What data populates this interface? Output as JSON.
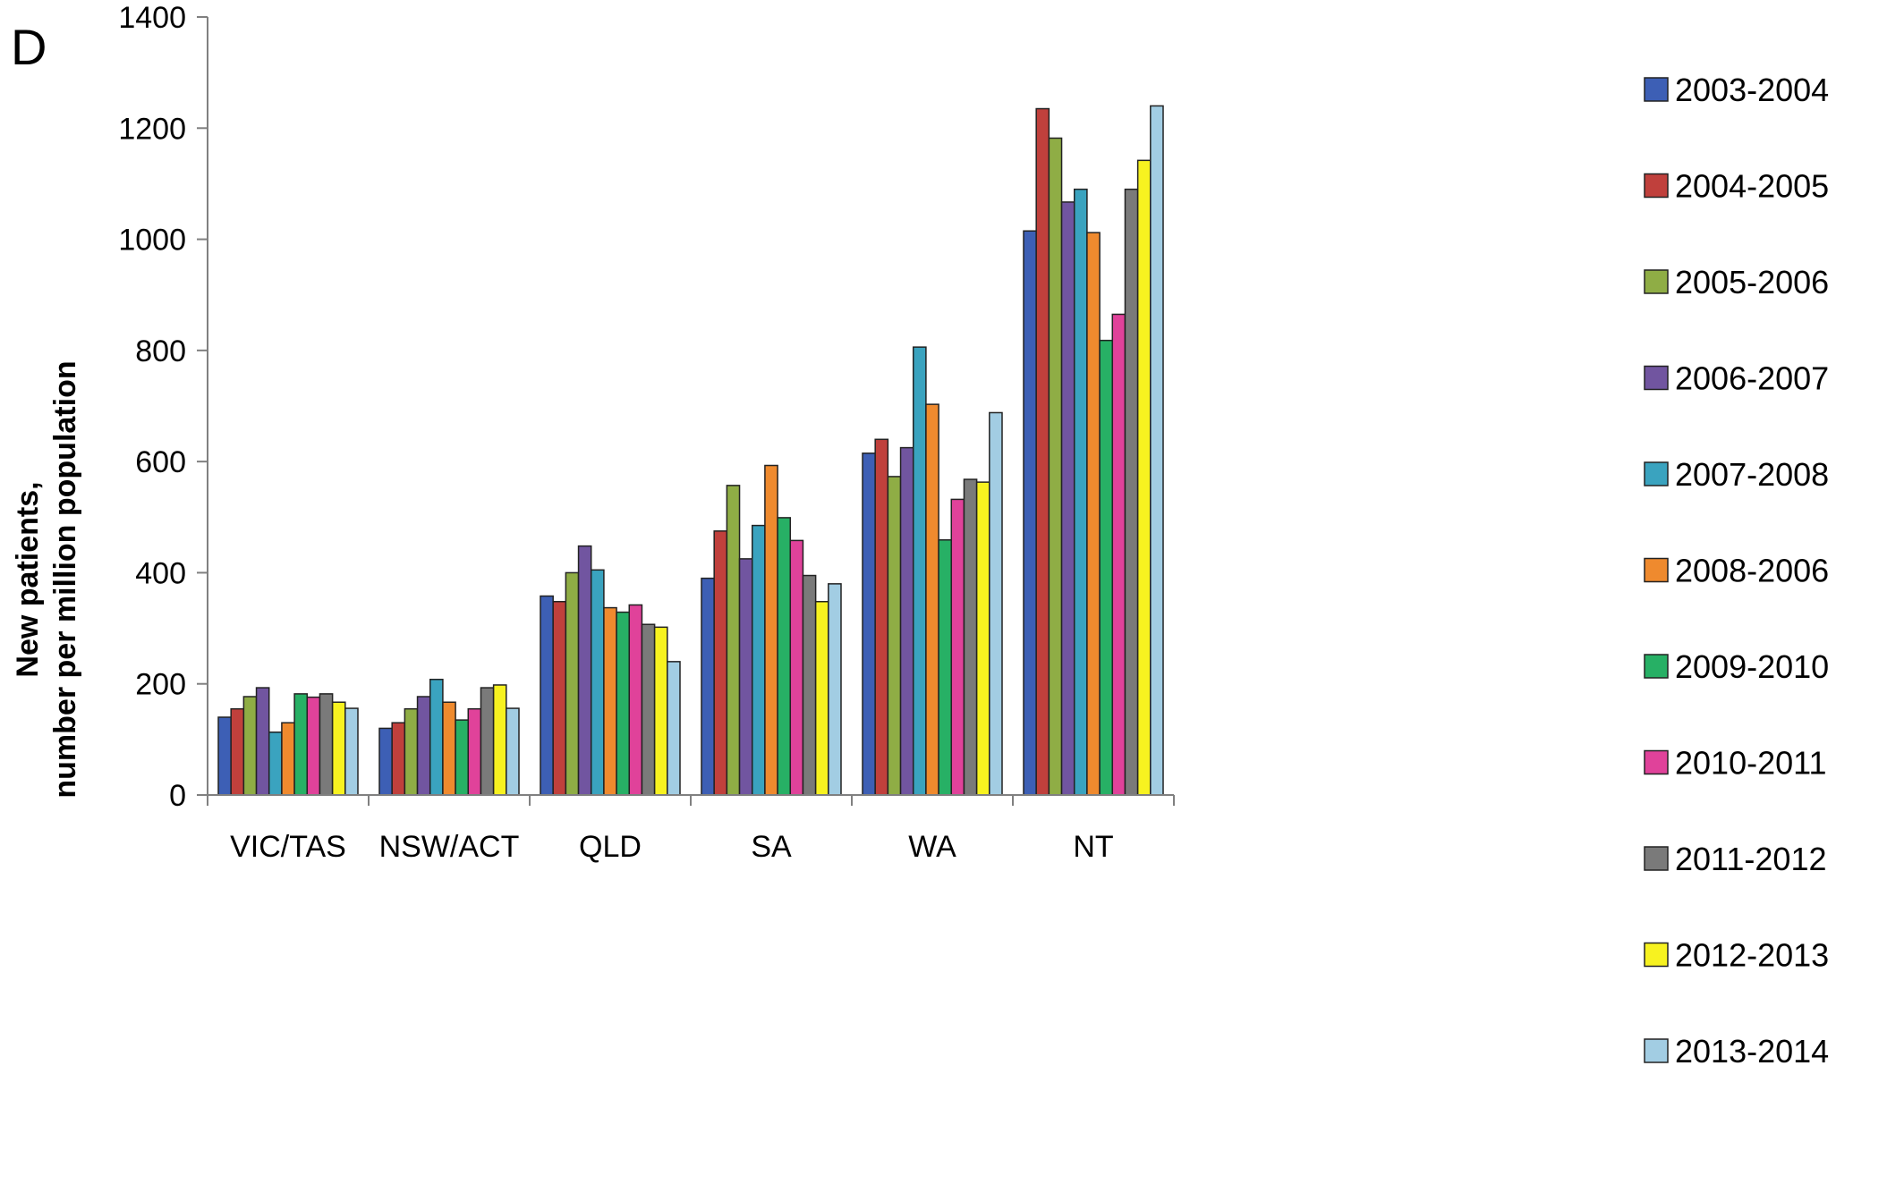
{
  "panel_label": "D",
  "colors": [
    "#3d5fb5",
    "#c0403c",
    "#8fad45",
    "#7155a0",
    "#3aa3bf",
    "#ef8a2e",
    "#27b065",
    "#e0429a",
    "#7a7a7a",
    "#f7f220",
    "#a2cde3"
  ],
  "chart_data": {
    "type": "bar",
    "title": "",
    "xlabel": "",
    "ylabel_lines": [
      "New patients,",
      "number per million population"
    ],
    "ylim": [
      0,
      1400
    ],
    "yticks": [
      0,
      200,
      400,
      600,
      800,
      1000,
      1200,
      1400
    ],
    "grid": false,
    "legend_position": "right",
    "categories": [
      "VIC/TAS",
      "NSW/ACT",
      "QLD",
      "SA",
      "WA",
      "NT"
    ],
    "series": [
      {
        "name": "2003-2004",
        "values": [
          140,
          120,
          358,
          390,
          615,
          1015
        ]
      },
      {
        "name": "2004-2005",
        "values": [
          155,
          130,
          348,
          475,
          640,
          1235
        ]
      },
      {
        "name": "2005-2006",
        "values": [
          177,
          155,
          400,
          557,
          573,
          1182
        ]
      },
      {
        "name": "2006-2007",
        "values": [
          193,
          177,
          448,
          425,
          625,
          1067
        ]
      },
      {
        "name": "2007-2008",
        "values": [
          113,
          208,
          405,
          485,
          806,
          1090
        ]
      },
      {
        "name": "2008-2006",
        "values": [
          130,
          167,
          337,
          593,
          703,
          1012
        ]
      },
      {
        "name": "2009-2010",
        "values": [
          182,
          135,
          329,
          499,
          459,
          818
        ]
      },
      {
        "name": "2010-2011",
        "values": [
          176,
          155,
          342,
          458,
          532,
          865
        ]
      },
      {
        "name": "2011-2012",
        "values": [
          182,
          193,
          307,
          395,
          568,
          1090
        ]
      },
      {
        "name": "2012-2013",
        "values": [
          167,
          198,
          302,
          348,
          563,
          1142
        ]
      },
      {
        "name": "2013-2014",
        "values": [
          156,
          156,
          240,
          380,
          688,
          1240
        ]
      }
    ]
  }
}
